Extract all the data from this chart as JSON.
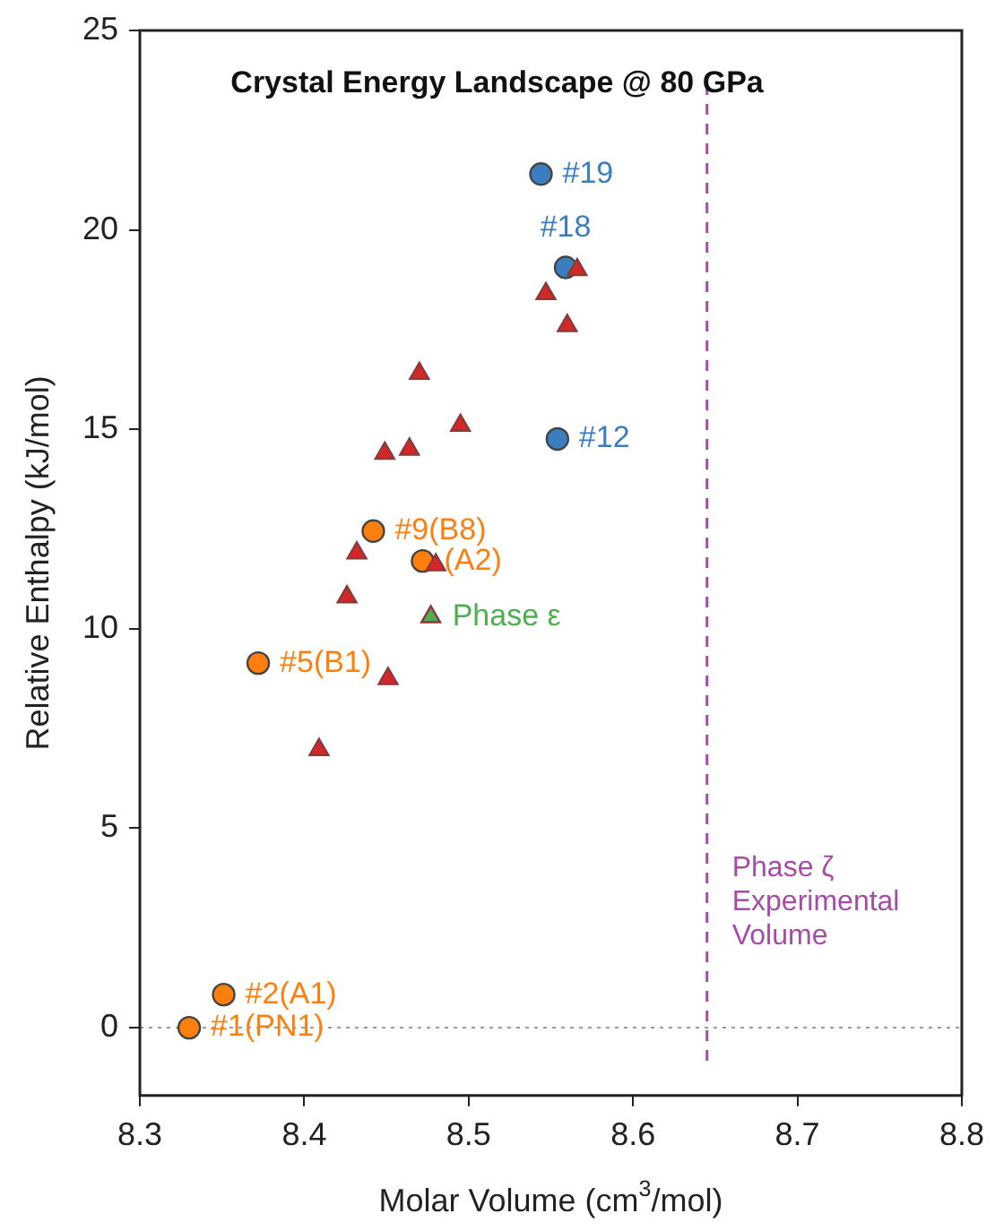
{
  "chart_data": {
    "type": "scatter",
    "title": "Crystal Energy Landscape @ 80 GPa",
    "xlabel": "Molar Volume (cm$^{3}$/mol)",
    "ylabel": "Relative Enthalpy (kJ/mol)",
    "xlim": [
      8.3,
      8.8
    ],
    "xticks": [
      8.3,
      8.4,
      8.5,
      8.6,
      8.7,
      8.8
    ],
    "ylim": [
      -1.7,
      25
    ],
    "yticks": [
      0,
      5,
      10,
      15,
      20,
      25
    ],
    "grid": false,
    "legend": false,
    "series": [
      {
        "color": "#d62728",
        "marker": "triangle",
        "x": [
          8.566,
          8.547,
          8.56,
          8.47,
          8.495,
          8.449,
          8.464,
          8.432,
          8.48,
          8.426,
          8.451,
          8.409
        ],
        "values": [
          19.0,
          18.4,
          17.6,
          16.4,
          15.1,
          14.4,
          14.5,
          11.9,
          11.6,
          10.8,
          8.75,
          6.97
        ]
      },
      {
        "color": "#ff7f0e",
        "marker": "circle",
        "x": [
          8.442,
          8.472,
          8.372,
          8.351,
          8.33
        ],
        "values": [
          12.45,
          11.7,
          9.14,
          0.83,
          0
        ]
      },
      {
        "color": "#3a7ebf",
        "marker": "circle",
        "x": [
          8.544,
          8.559,
          8.554
        ],
        "values": [
          21.4,
          19.06,
          14.76
        ]
      },
      {
        "color": "#4caf50",
        "marker": "triangle",
        "x": [
          8.477
        ],
        "values": [
          10.3
        ]
      }
    ],
    "annotations": [
      {
        "text": "#9(B8)",
        "x": 8.442,
        "y": 12.45
      },
      {
        "text": "(A2)",
        "x": 8.472,
        "y": 11.7
      },
      {
        "text": "#5(B1)",
        "x": 8.372,
        "y": 9.14
      },
      {
        "text": "#2(A1)",
        "x": 8.351,
        "y": 0.83
      },
      {
        "text": "#1(PN1)",
        "x": 8.33,
        "y": 0
      },
      {
        "text": "#19",
        "x": 8.544,
        "y": 21.4
      },
      {
        "text": "#18",
        "x": 8.559,
        "y": 19.06
      },
      {
        "text": "#12",
        "x": 8.554,
        "y": 14.76
      },
      {
        "text": "Phase ε",
        "x": 8.477,
        "y": 10.3
      }
    ],
    "ref_lines": [
      {
        "axis": "x",
        "value": 8.645,
        "label": "Phase ζ\nExperimental\nVolume",
        "color": "#a64ca6",
        "line_style": "dashed"
      },
      {
        "axis": "y",
        "value": 0,
        "color": "#999999",
        "line_style": "dotted"
      }
    ]
  }
}
